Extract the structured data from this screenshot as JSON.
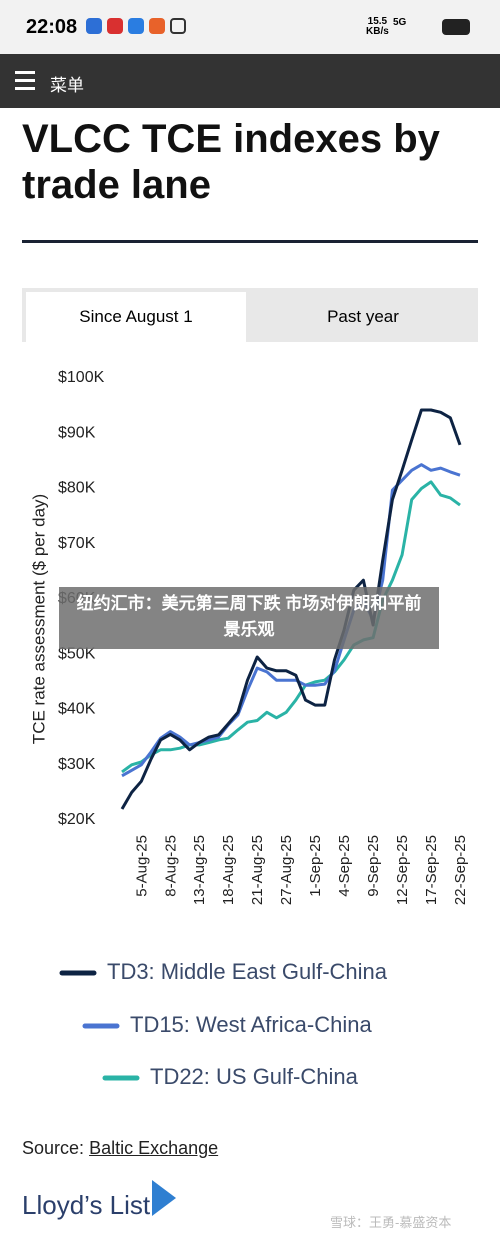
{
  "status_bar": {
    "time": "22:08",
    "speed": "15.5",
    "speed_unit": "KB/s",
    "network": "5G"
  },
  "menu": {
    "label": "菜单"
  },
  "article": {
    "title": "VLCC TCE indexes by trade lane",
    "tabs": [
      "Since August 1",
      "Past year"
    ],
    "source_prefix": "Source:",
    "source_link": "Baltic Exchange",
    "logo": "Lloyd’s List"
  },
  "overlay": {
    "headline": "纽约汇市：美元第三周下跌 市场对伊朗和平前景乐观"
  },
  "watermark": "雪球：王勇-慕盛资本",
  "chart_data": {
    "type": "line",
    "ylabel": "TCE rate assessment ($ per day)",
    "categories": [
      null,
      null,
      "5-Aug-25",
      null,
      null,
      "8-Aug-25",
      null,
      null,
      "13-Aug-25",
      null,
      null,
      "18-Aug-25",
      null,
      null,
      "21-Aug-25",
      null,
      null,
      "27-Aug-25",
      null,
      null,
      "1-Sep-25",
      null,
      null,
      "4-Sep-25",
      null,
      null,
      "9-Sep-25",
      null,
      null,
      "12-Sep-25",
      null,
      null,
      "17-Sep-25",
      null,
      null,
      "22-Sep-25"
    ],
    "ylim": [
      20000,
      100000
    ],
    "yticks": [
      {
        "value": 20000,
        "label": "$20K"
      },
      {
        "value": 30000,
        "label": "$30K"
      },
      {
        "value": 40000,
        "label": "$40K"
      },
      {
        "value": 50000,
        "label": "$50K"
      },
      {
        "value": 60000,
        "label": "$60K"
      },
      {
        "value": 70000,
        "label": "$70K"
      },
      {
        "value": 80000,
        "label": "$80K"
      },
      {
        "value": 90000,
        "label": "$90K"
      },
      {
        "value": 100000,
        "label": "$100K"
      }
    ],
    "grid": false,
    "series": [
      {
        "name": "TD3: Middle East Gulf-China",
        "color": "#0d2343",
        "values": [
          22000,
          25000,
          27000,
          31000,
          34500,
          35500,
          34500,
          32700,
          34000,
          35000,
          35400,
          37400,
          39500,
          45300,
          49500,
          47500,
          47000,
          47000,
          46200,
          41700,
          40800,
          40800,
          49000,
          54400,
          61600,
          63400,
          55300,
          67000,
          78000,
          83300,
          88800,
          94200,
          94200,
          93800,
          92800,
          87900
        ]
      },
      {
        "name": "TD15: West Africa-China",
        "color": "#4a74d1",
        "values": [
          28000,
          29000,
          30000,
          32300,
          34800,
          36000,
          35000,
          33600,
          34000,
          34500,
          35000,
          37200,
          39000,
          43500,
          47500,
          46800,
          45300,
          45300,
          45300,
          44400,
          44400,
          44600,
          47000,
          52600,
          58000,
          59800,
          56200,
          63400,
          79700,
          81500,
          83300,
          84300,
          83300,
          83700,
          83000,
          82400
        ]
      },
      {
        "name": "TD22: US Gulf-China",
        "color": "#2ab3a6",
        "values": [
          28700,
          30000,
          30500,
          31800,
          32700,
          32700,
          33000,
          33600,
          33600,
          34000,
          34500,
          34800,
          36300,
          37700,
          38000,
          39500,
          38500,
          39500,
          41700,
          44400,
          45000,
          45300,
          46800,
          49000,
          51700,
          52600,
          53000,
          59800,
          63400,
          68000,
          78000,
          80000,
          81200,
          78800,
          78300,
          77000
        ]
      }
    ]
  }
}
